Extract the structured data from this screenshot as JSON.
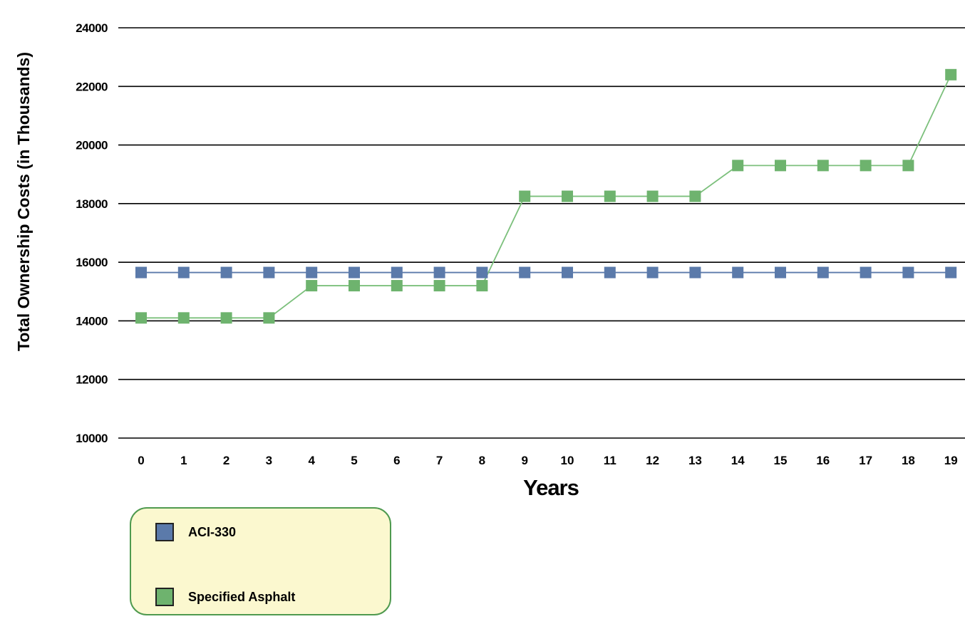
{
  "chart_data": {
    "type": "line",
    "xlabel": "Years",
    "ylabel": "Total Ownership Costs (in Thousands)",
    "ylim": [
      10000,
      24000
    ],
    "yticks": [
      10000,
      12000,
      14000,
      16000,
      18000,
      20000,
      22000,
      24000
    ],
    "grid": "horizontal",
    "legend_position": "bottom-left",
    "categories": [
      "0",
      "1",
      "2",
      "3",
      "4",
      "5",
      "6",
      "7",
      "8",
      "9",
      "10",
      "11",
      "12",
      "13",
      "14",
      "15",
      "16",
      "17",
      "18",
      "19"
    ],
    "series": [
      {
        "name": "ACI-330",
        "color": "#5b7aaa",
        "marker_color": "#5b7aaa",
        "values": [
          15650,
          15650,
          15650,
          15650,
          15650,
          15650,
          15650,
          15650,
          15650,
          15650,
          15650,
          15650,
          15650,
          15650,
          15650,
          15650,
          15650,
          15650,
          15650,
          15650
        ]
      },
      {
        "name": "Specified Asphalt",
        "color": "#7cc07c",
        "marker_color": "#6eb36e",
        "values": [
          14100,
          14100,
          14100,
          14100,
          15200,
          15200,
          15200,
          15200,
          15200,
          18250,
          18250,
          18250,
          18250,
          18250,
          19300,
          19300,
          19300,
          19300,
          19300,
          22400
        ]
      }
    ]
  }
}
